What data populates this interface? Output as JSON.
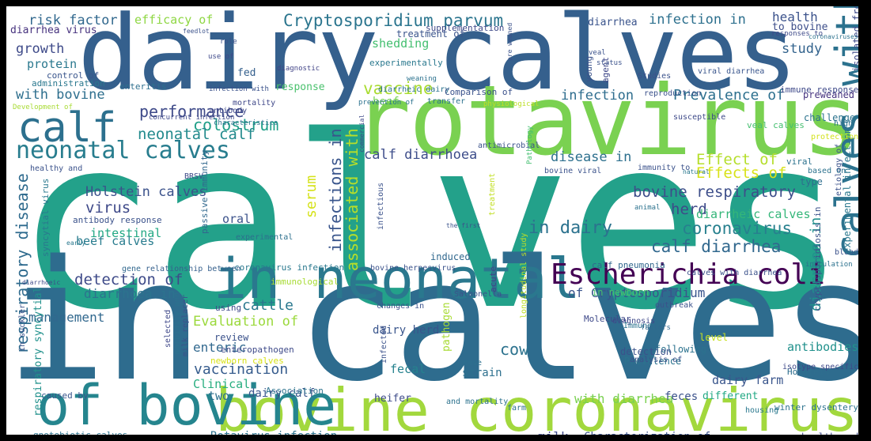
{
  "colors": {
    "frame": "#000000",
    "background": "#ffffff"
  },
  "words": [
    {
      "text": "calves",
      "color": "#23a18a"
    },
    {
      "text": "in calves",
      "color": "#2e6c8e"
    },
    {
      "text": "dairy calves",
      "color": "#35608d"
    },
    {
      "text": "rotavirus",
      "color": "#7ad151"
    },
    {
      "text": "in neonatal",
      "color": "#2a788e"
    },
    {
      "text": "bovine coronavirus",
      "color": "#a2d83d"
    },
    {
      "text": "of bovine",
      "color": "#25858e"
    },
    {
      "text": "calves with",
      "color": "#2c728e"
    },
    {
      "text": "calf",
      "color": "#2c708e"
    },
    {
      "text": "Escherichia coli",
      "color": "#440154"
    },
    {
      "text": "neonatal calves",
      "color": "#287d8e"
    },
    {
      "text": "Cryptosporidium parvum",
      "color": "#2b758e"
    },
    {
      "text": "infection in",
      "color": "#2d708e"
    },
    {
      "text": "risk factor",
      "color": "#31688e"
    },
    {
      "text": "efficacy of",
      "color": "#8fd744"
    },
    {
      "text": "diarrhea",
      "color": "#3a548c"
    },
    {
      "text": "health",
      "color": "#3b528b"
    },
    {
      "text": "to bovine",
      "color": "#3d4e8a"
    },
    {
      "text": "diarrhea virus",
      "color": "#46327e"
    },
    {
      "text": "growth",
      "color": "#3e4a89"
    },
    {
      "text": "shedding",
      "color": "#44bf70"
    },
    {
      "text": "treatment of",
      "color": "#3a548c"
    },
    {
      "text": "study",
      "color": "#33638d"
    },
    {
      "text": "protein",
      "color": "#2a788e"
    },
    {
      "text": "colostrum",
      "color": "#1f9f88"
    },
    {
      "text": "vaccine",
      "color": "#aadc32"
    },
    {
      "text": "beef",
      "color": "#75d054"
    },
    {
      "text": "with bovine",
      "color": "#2e6f8e"
    },
    {
      "text": "infection",
      "color": "#2e6d8e"
    },
    {
      "text": "Prevalence of",
      "color": "#2d708e"
    },
    {
      "text": "performance",
      "color": "#3e4a89"
    },
    {
      "text": "neonatal calf",
      "color": "#238a8d"
    },
    {
      "text": "calf diarrhoea",
      "color": "#3d4d8a"
    },
    {
      "text": "disease in",
      "color": "#2d708e"
    },
    {
      "text": "Effect of",
      "color": "#b5de2b"
    },
    {
      "text": "Effects of",
      "color": "#d8e219"
    },
    {
      "text": "bovine respiratory",
      "color": "#3d4e8a"
    },
    {
      "text": "Holstein calves",
      "color": "#3b528b"
    },
    {
      "text": "virus",
      "color": "#3e4989"
    },
    {
      "text": "herd",
      "color": "#3e4a89"
    },
    {
      "text": "coronavirus",
      "color": "#27808e"
    },
    {
      "text": "diarrheic calves",
      "color": "#34b679"
    },
    {
      "text": "in dairy",
      "color": "#2c728e"
    },
    {
      "text": "calf diarrhea",
      "color": "#31688e"
    },
    {
      "text": "respiratory disease",
      "color": "#2f6b8e"
    },
    {
      "text": "infections in",
      "color": "#39558c"
    },
    {
      "text": "associated with",
      "color": "#b8de29"
    },
    {
      "text": "diarrhea in",
      "color": "#21908d"
    },
    {
      "text": "detection of",
      "color": "#3e4a89"
    },
    {
      "text": "diarrhoea in",
      "color": "#2c738e"
    },
    {
      "text": "of Cryptosporidium",
      "color": "#3a548c"
    },
    {
      "text": "cattle",
      "color": "#2a788e"
    },
    {
      "text": "Evaluation of",
      "color": "#9bd93c"
    },
    {
      "text": "enteric",
      "color": "#31688e"
    },
    {
      "text": "vaccination",
      "color": "#365c8d"
    },
    {
      "text": "cow",
      "color": "#2c728e"
    },
    {
      "text": "dairy herd",
      "color": "#39558c"
    },
    {
      "text": "dairy farm",
      "color": "#39558c"
    },
    {
      "text": "beef calves",
      "color": "#287c8e"
    },
    {
      "text": "intestinal",
      "color": "#22a884"
    },
    {
      "text": "oral",
      "color": "#3b528b"
    },
    {
      "text": "management",
      "color": "#31688e"
    },
    {
      "text": "Clinical",
      "color": "#28ae80"
    },
    {
      "text": "dairy calf",
      "color": "#39558c"
    },
    {
      "text": "two",
      "color": "#2d708e"
    },
    {
      "text": "strain",
      "color": "#2d708e"
    },
    {
      "text": "fecal",
      "color": "#26828e"
    },
    {
      "text": "with diarrhea",
      "color": "#7ad151"
    },
    {
      "text": "Rotavirus infection",
      "color": "#2c728e"
    },
    {
      "text": "milk",
      "color": "#3e4a89"
    },
    {
      "text": "Characterization of",
      "color": "#3b528b"
    },
    {
      "text": "heifer",
      "color": "#3e4c8a"
    },
    {
      "text": "feces",
      "color": "#3b528b"
    },
    {
      "text": "different",
      "color": "#22a884"
    },
    {
      "text": "Holstein",
      "color": "#2e6e8e"
    },
    {
      "text": "antibodies",
      "color": "#21918c"
    },
    {
      "text": "caused by",
      "color": "#39558c"
    },
    {
      "text": "gnotobiotic calves",
      "color": "#2c728e"
    },
    {
      "text": "health and",
      "color": "#3e4a89"
    },
    {
      "text": "syncytial virus",
      "color": "#2a788e"
    },
    {
      "text": "respiratory syncytial",
      "color": "#21918c"
    },
    {
      "text": "pathogen",
      "color": "#a8db34"
    },
    {
      "text": "induced",
      "color": "#31688e"
    },
    {
      "text": "Salmonella",
      "color": "#3b528b"
    },
    {
      "text": "in newborn",
      "color": "#48c16e"
    },
    {
      "text": "calf pneumonia",
      "color": "#31688e"
    },
    {
      "text": "coronavirus infection",
      "color": "#2a788e"
    },
    {
      "text": "antibody response",
      "color": "#3b528b"
    },
    {
      "text": "fed",
      "color": "#35608d"
    },
    {
      "text": "response",
      "color": "#4ac16d"
    },
    {
      "text": "enteritis",
      "color": "#2e6f8e"
    },
    {
      "text": "mortality",
      "color": "#3f4788"
    },
    {
      "text": "antibody",
      "color": "#3f4889"
    },
    {
      "text": "serum",
      "color": "#d5e21a"
    },
    {
      "text": "passive immunity",
      "color": "#31688e"
    },
    {
      "text": "experimental",
      "color": "#2d708e"
    },
    {
      "text": "infectious",
      "color": "#3b528b"
    },
    {
      "text": "treatment",
      "color": "#c2df23"
    },
    {
      "text": "natural",
      "color": "#2a788e"
    },
    {
      "text": "viral",
      "color": "#2c728e"
    },
    {
      "text": "type",
      "color": "#2e6e8e"
    },
    {
      "text": "challenge",
      "color": "#2c738e"
    },
    {
      "text": "preweaned",
      "color": "#46337f"
    },
    {
      "text": "immune response",
      "color": "#3e4989"
    },
    {
      "text": "viral diarrhea",
      "color": "#39558c"
    },
    {
      "text": "young",
      "color": "#3b528b"
    },
    {
      "text": "agent",
      "color": "#3f4889"
    },
    {
      "text": "Studies",
      "color": "#3b528b"
    },
    {
      "text": "veal calves",
      "color": "#44bf70"
    },
    {
      "text": "bovine viral",
      "color": "#3b528b"
    },
    {
      "text": "BRSV",
      "color": "#3e4a89"
    },
    {
      "text": "animal",
      "color": "#2c728e"
    },
    {
      "text": "immunity to",
      "color": "#3b528b"
    },
    {
      "text": "acute",
      "color": "#414487"
    },
    {
      "text": "outbreak",
      "color": "#3b528b"
    },
    {
      "text": "Molecular",
      "color": "#3e4989"
    },
    {
      "text": "diagnosis",
      "color": "#3f4889"
    },
    {
      "text": "Immune",
      "color": "#2c738e"
    },
    {
      "text": "factors",
      "color": "#31688e"
    },
    {
      "text": "level",
      "color": "#c8e020"
    },
    {
      "text": "following",
      "color": "#2c728e"
    },
    {
      "text": "detection",
      "color": "#3b528b"
    },
    {
      "text": "Prevalence",
      "color": "#2c738e"
    },
    {
      "text": "analysis of",
      "color": "#3b528b"
    },
    {
      "text": "isotype specific",
      "color": "#3e4989"
    },
    {
      "text": "case",
      "color": "#2d708e"
    },
    {
      "text": "infected",
      "color": "#3b528b"
    },
    {
      "text": "changes in",
      "color": "#3b528b"
    },
    {
      "text": "Association",
      "color": "#2c728e"
    },
    {
      "text": "review",
      "color": "#3b528b"
    },
    {
      "text": "enteropathogen",
      "color": "#3e4a89"
    },
    {
      "text": "newborn calves",
      "color": "#d8e219"
    },
    {
      "text": "selected",
      "color": "#3f4889"
    },
    {
      "text": "morbidity and",
      "color": "#2c728e"
    },
    {
      "text": "milk replacer",
      "color": "#3b528b"
    },
    {
      "text": "in suckler",
      "color": "#3b528b"
    },
    {
      "text": "using",
      "color": "#3e4989"
    },
    {
      "text": "gene",
      "color": "#31688e"
    },
    {
      "text": "relationship between",
      "color": "#35608d"
    },
    {
      "text": "bovine herpesvirus",
      "color": "#3b528b"
    },
    {
      "text": "Influence of",
      "color": "#48c16e"
    },
    {
      "text": "the effect",
      "color": "#3b528b"
    },
    {
      "text": "respiratory tract",
      "color": "#3f4788"
    },
    {
      "text": "and mortality",
      "color": "#2c728e"
    },
    {
      "text": "farm",
      "color": "#2d708e"
    },
    {
      "text": "housing",
      "color": "#2a788e"
    },
    {
      "text": "winter dysentery",
      "color": "#2c728e"
    },
    {
      "text": "cryptosporidiosis in",
      "color": "#3b528b"
    },
    {
      "text": "New",
      "color": "#2c728e"
    },
    {
      "text": "longitudinal study",
      "color": "#bddf26"
    },
    {
      "text": "blood",
      "color": "#3b528b"
    },
    {
      "text": "experimental infection",
      "color": "#2a788e"
    },
    {
      "text": "isolated from",
      "color": "#3e4a89"
    },
    {
      "text": "etiology of",
      "color": "#3b528b"
    },
    {
      "text": "protection",
      "color": "#d2e21b"
    },
    {
      "text": "high",
      "color": "#2c728e"
    },
    {
      "text": "diarrheic dairy",
      "color": "#2c728e"
    },
    {
      "text": "experimentally",
      "color": "#2a788e"
    },
    {
      "text": "supplementation",
      "color": "#3e4989"
    },
    {
      "text": "veal",
      "color": "#3b528b"
    },
    {
      "text": "status",
      "color": "#3b528b"
    },
    {
      "text": "pre weaned",
      "color": "#3b528b"
    },
    {
      "text": "responses to",
      "color": "#3e4989"
    },
    {
      "text": "coronaviruses",
      "color": "#2c728e"
    },
    {
      "text": "role",
      "color": "#3b528b"
    },
    {
      "text": "use of",
      "color": "#3e4989"
    },
    {
      "text": "feedlot",
      "color": "#3b528b"
    },
    {
      "text": "diagnostic",
      "color": "#414487"
    },
    {
      "text": "control of",
      "color": "#39558c"
    },
    {
      "text": "administration",
      "color": "#2a788e"
    },
    {
      "text": "infection with",
      "color": "#3b528b"
    },
    {
      "text": "weaning",
      "color": "#2c728e"
    },
    {
      "text": "Comparison of",
      "color": "#3b528b"
    },
    {
      "text": "transfer",
      "color": "#2c728e"
    },
    {
      "text": "physiological",
      "color": "#bddf26"
    },
    {
      "text": "prevention of",
      "color": "#2c728e"
    },
    {
      "text": "Development of",
      "color": "#a8db34"
    },
    {
      "text": "concurrent infection",
      "color": "#3e4989"
    },
    {
      "text": "characteristics",
      "color": "#2c728e"
    },
    {
      "text": "healthy and",
      "color": "#3b528b"
    },
    {
      "text": "antimicrobial",
      "color": "#3b528b"
    },
    {
      "text": "commercial",
      "color": "#3e4989"
    },
    {
      "text": "Pathology",
      "color": "#44bf70"
    },
    {
      "text": "reproduction",
      "color": "#3b528b"
    },
    {
      "text": "susceptible",
      "color": "#3e4a89"
    },
    {
      "text": "early",
      "color": "#2a788e"
    },
    {
      "text": "the first",
      "color": "#3b528b"
    },
    {
      "text": "inoculation",
      "color": "#2c728e"
    },
    {
      "text": "based on",
      "color": "#2c728e"
    },
    {
      "text": "calves with diarrhea",
      "color": "#3b528b"
    },
    {
      "text": "diarrhoeic",
      "color": "#3e4989"
    },
    {
      "text": "immunological",
      "color": "#a8db34"
    }
  ]
}
